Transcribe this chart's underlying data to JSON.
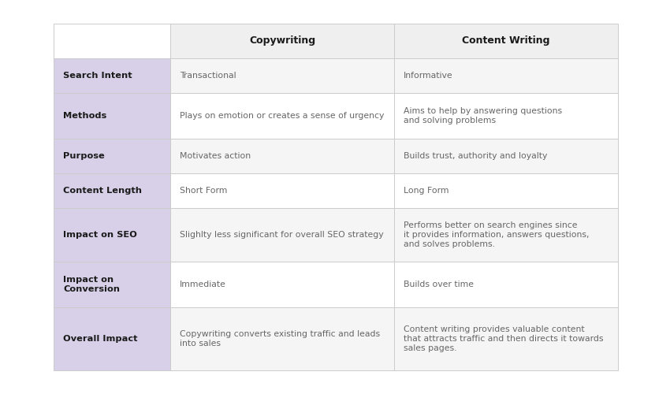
{
  "bg_color": "#ffffff",
  "header_bg": "#efefef",
  "row_label_bg": "#d8d0e8",
  "row_data_bg": "#f5f5f5",
  "border_color": "#cccccc",
  "header_text_color": "#1a1a1a",
  "label_text_color": "#1a1a1a",
  "cell_text_color": "#666666",
  "col1_header": "Copywriting",
  "col2_header": "Content Writing",
  "rows": [
    {
      "label": "Search Intent",
      "col1": "Transactional",
      "col2": "Informative"
    },
    {
      "label": "Methods",
      "col1": "Plays on emotion or creates a sense of urgency",
      "col2": "Aims to help by answering questions\nand solving problems"
    },
    {
      "label": "Purpose",
      "col1": "Motivates action",
      "col2": "Builds trust, authority and loyalty"
    },
    {
      "label": "Content Length",
      "col1": "Short Form",
      "col2": "Long Form"
    },
    {
      "label": "Impact on SEO",
      "col1": "Slighlty less significant for overall SEO strategy",
      "col2": "Performs better on search engines since\nit provides information, answers questions,\nand solves problems."
    },
    {
      "label": "Impact on\nConversion",
      "col1": "Immediate",
      "col2": "Builds over time"
    },
    {
      "label": "Overall Impact",
      "col1": "Copywriting converts existing traffic and leads\ninto sales",
      "col2": "Content writing provides valuable content\nthat attracts traffic and then directs it towards\nsales pages."
    }
  ],
  "figsize": [
    8.5,
    5.0
  ],
  "dpi": 100
}
